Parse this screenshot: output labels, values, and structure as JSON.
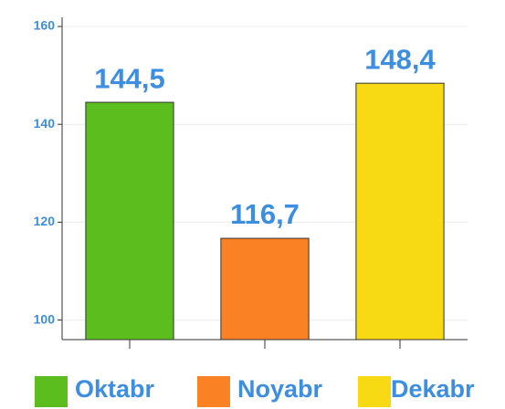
{
  "chart_data": {
    "type": "bar",
    "categories": [
      "Oktabr",
      "Noyabr",
      "Dekabr"
    ],
    "values": [
      144.5,
      116.7,
      148.4
    ],
    "value_labels": [
      "144,5",
      "116,7",
      "148,4"
    ],
    "colors": [
      "#5cbd1e",
      "#fb8125",
      "#f7da14"
    ],
    "ylim": [
      96,
      160
    ],
    "yticks": [
      100,
      120,
      140,
      160
    ],
    "grid": true
  }
}
